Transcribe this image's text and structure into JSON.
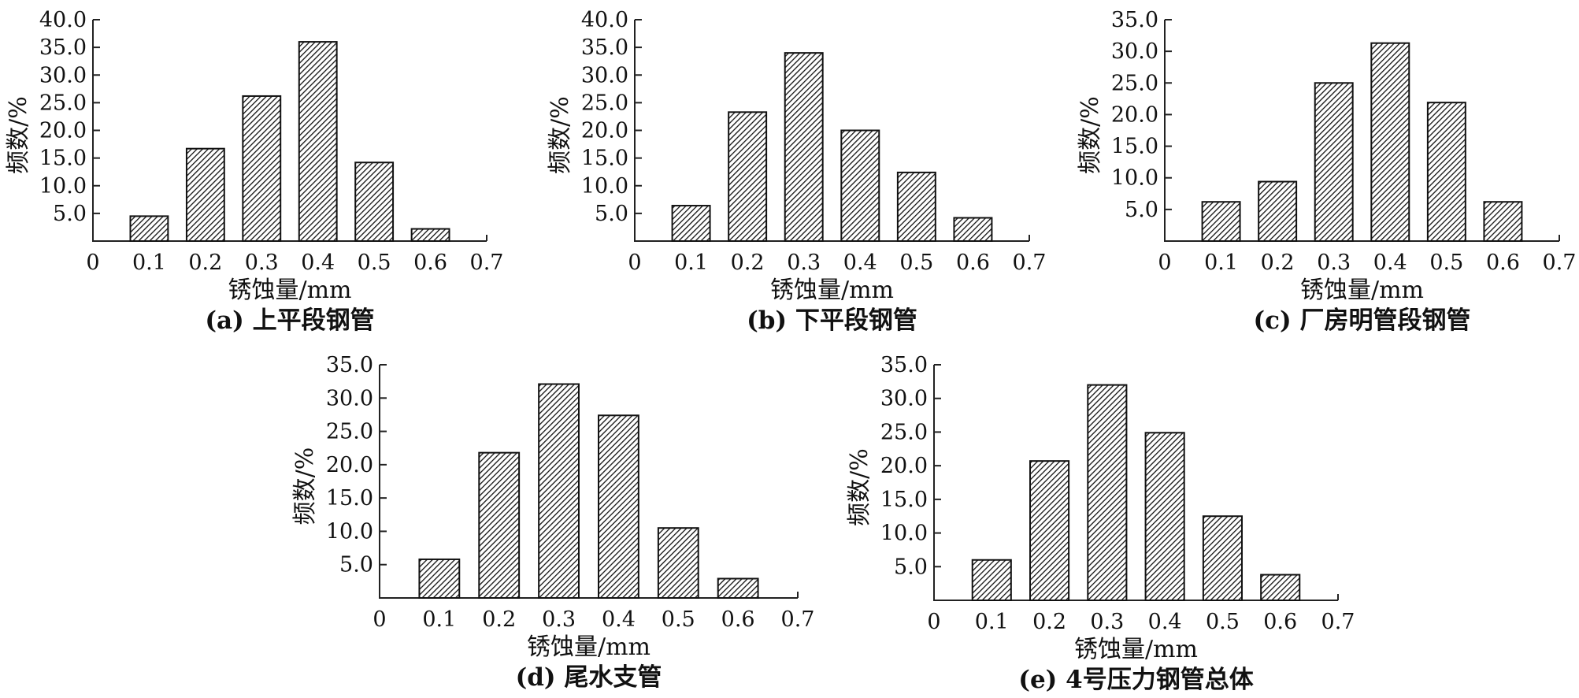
{
  "chart_data": [
    {
      "type": "bar",
      "caption": "(a) 上平段钢管",
      "xlabel": "锈蚀量/mm",
      "ylabel": "频数/%",
      "x_ticks": [
        "0",
        "0.1",
        "0.2",
        "0.3",
        "0.4",
        "0.5",
        "0.6",
        "0.7"
      ],
      "y_ticks": [
        "5.0",
        "10.0",
        "15.0",
        "20.0",
        "25.0",
        "30.0",
        "35.0",
        "40.0"
      ],
      "categories": [
        0.1,
        0.2,
        0.3,
        0.4,
        0.5,
        0.6
      ],
      "values": [
        4.5,
        16.7,
        26.2,
        36.0,
        14.2,
        2.2
      ],
      "xlim": [
        0,
        0.7
      ],
      "ylim": [
        0,
        40
      ],
      "grid": false,
      "pattern": "diagonal-hatch"
    },
    {
      "type": "bar",
      "caption": "(b) 下平段钢管",
      "xlabel": "锈蚀量/mm",
      "ylabel": "频数/%",
      "x_ticks": [
        "0",
        "0.1",
        "0.2",
        "0.3",
        "0.4",
        "0.5",
        "0.6",
        "0.7"
      ],
      "y_ticks": [
        "5.0",
        "10.0",
        "15.0",
        "20.0",
        "25.0",
        "30.0",
        "35.0",
        "40.0"
      ],
      "categories": [
        0.1,
        0.2,
        0.3,
        0.4,
        0.5,
        0.6
      ],
      "values": [
        6.4,
        23.3,
        34.0,
        20.0,
        12.4,
        4.2
      ],
      "xlim": [
        0,
        0.7
      ],
      "ylim": [
        0,
        40
      ],
      "grid": false,
      "pattern": "diagonal-hatch"
    },
    {
      "type": "bar",
      "caption": "(c) 厂房明管段钢管",
      "xlabel": "锈蚀量/mm",
      "ylabel": "频数/%",
      "x_ticks": [
        "0",
        "0.1",
        "0.2",
        "0.3",
        "0.4",
        "0.5",
        "0.6",
        "0.7"
      ],
      "y_ticks": [
        "5.0",
        "10.0",
        "15.0",
        "20.0",
        "25.0",
        "30.0",
        "35.0"
      ],
      "categories": [
        0.1,
        0.2,
        0.3,
        0.4,
        0.5,
        0.6
      ],
      "values": [
        6.2,
        9.4,
        25.0,
        31.3,
        21.9,
        6.2
      ],
      "xlim": [
        0,
        0.7
      ],
      "ylim": [
        0,
        35
      ],
      "grid": false,
      "pattern": "diagonal-hatch"
    },
    {
      "type": "bar",
      "caption": "(d) 尾水支管",
      "xlabel": "锈蚀量/mm",
      "ylabel": "频数/%",
      "x_ticks": [
        "0",
        "0.1",
        "0.2",
        "0.3",
        "0.4",
        "0.5",
        "0.6",
        "0.7"
      ],
      "y_ticks": [
        "5.0",
        "10.0",
        "15.0",
        "20.0",
        "25.0",
        "30.0",
        "35.0"
      ],
      "categories": [
        0.1,
        0.2,
        0.3,
        0.4,
        0.5,
        0.6
      ],
      "values": [
        5.8,
        21.8,
        32.1,
        27.4,
        10.5,
        2.9
      ],
      "xlim": [
        0,
        0.7
      ],
      "ylim": [
        0,
        35
      ],
      "grid": false,
      "pattern": "diagonal-hatch"
    },
    {
      "type": "bar",
      "caption": "(e) 4号压力钢管总体",
      "xlabel": "锈蚀量/mm",
      "ylabel": "频数/%",
      "x_ticks": [
        "0",
        "0.1",
        "0.2",
        "0.3",
        "0.4",
        "0.5",
        "0.6",
        "0.7"
      ],
      "y_ticks": [
        "5.0",
        "10.0",
        "15.0",
        "20.0",
        "25.0",
        "30.0",
        "35.0"
      ],
      "categories": [
        0.1,
        0.2,
        0.3,
        0.4,
        0.5,
        0.6
      ],
      "values": [
        6.0,
        20.7,
        32.0,
        24.9,
        12.5,
        3.8
      ],
      "xlim": [
        0,
        0.7
      ],
      "ylim": [
        0,
        35
      ],
      "grid": false,
      "pattern": "diagonal-hatch"
    }
  ]
}
